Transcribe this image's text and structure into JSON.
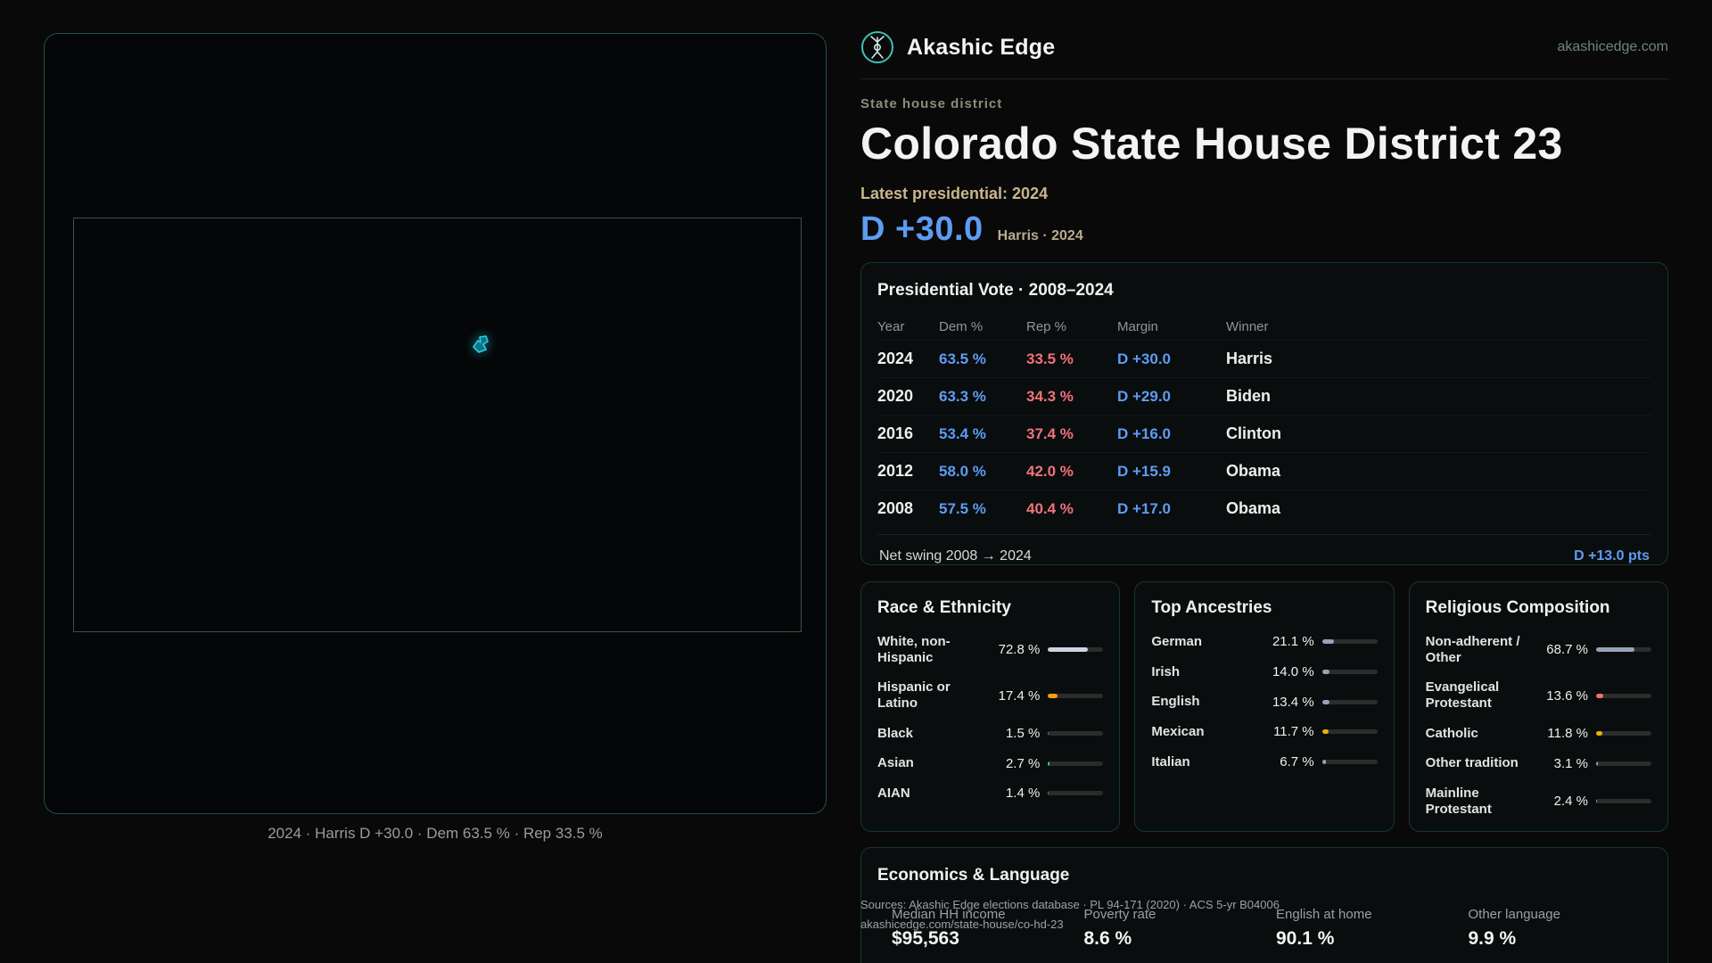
{
  "brand": {
    "name": "Akashic Edge",
    "domain": "akashicedge.com"
  },
  "header": {
    "kicker": "State house district",
    "title": "Colorado State House District 23",
    "latest_label": "Latest presidential: 2024",
    "margin_value": "D +30.0",
    "margin_note": "Harris · 2024"
  },
  "map": {
    "caption": "2024 · Harris D +30.0 · Dem 63.5 % · Rep 33.5 %"
  },
  "colors": {
    "dem_blue": "#5e9cf3",
    "rep_red": "#f0727c",
    "accent_teal": "#3fc0b6",
    "tan": "#c8b58c",
    "district_cyan": "#22d3ee"
  },
  "presidential": {
    "title": "Presidential Vote · 2008–2024",
    "columns": [
      "Year",
      "Dem %",
      "Rep %",
      "Margin",
      "Winner"
    ],
    "rows": [
      {
        "year": "2024",
        "dem": "63.5 %",
        "rep": "33.5 %",
        "margin": "D +30.0",
        "winner": "Harris"
      },
      {
        "year": "2020",
        "dem": "63.3 %",
        "rep": "34.3 %",
        "margin": "D +29.0",
        "winner": "Biden"
      },
      {
        "year": "2016",
        "dem": "53.4 %",
        "rep": "37.4 %",
        "margin": "D +16.0",
        "winner": "Clinton"
      },
      {
        "year": "2012",
        "dem": "58.0 %",
        "rep": "42.0 %",
        "margin": "D +15.9",
        "winner": "Obama"
      },
      {
        "year": "2008",
        "dem": "57.5 %",
        "rep": "40.4 %",
        "margin": "D +17.0",
        "winner": "Obama"
      }
    ],
    "footer_label": "Net swing 2008 → 2024",
    "footer_value": "D +13.0 pts"
  },
  "demographics": [
    {
      "title": "Race & Ethnicity",
      "rows": [
        {
          "label": "White, non-Hispanic",
          "value": "72.8 %",
          "pct": 72.8,
          "color": "#cbd5e1"
        },
        {
          "label": "Hispanic or Latino",
          "value": "17.4 %",
          "pct": 17.4,
          "color": "#f59e0b"
        },
        {
          "label": "Black",
          "value": "1.5 %",
          "pct": 1.5,
          "color": "#8b5cf6"
        },
        {
          "label": "Asian",
          "value": "2.7 %",
          "pct": 2.7,
          "color": "#34d399"
        },
        {
          "label": "AIAN",
          "value": "1.4 %",
          "pct": 1.4,
          "color": "#ef4444"
        }
      ]
    },
    {
      "title": "Top Ancestries",
      "rows": [
        {
          "label": "German",
          "value": "21.1 %",
          "pct": 21.1,
          "color": "#94a3b8"
        },
        {
          "label": "Irish",
          "value": "14.0 %",
          "pct": 14.0,
          "color": "#94a3b8"
        },
        {
          "label": "English",
          "value": "13.4 %",
          "pct": 13.4,
          "color": "#94a3b8"
        },
        {
          "label": "Mexican",
          "value": "11.7 %",
          "pct": 11.7,
          "color": "#eab308"
        },
        {
          "label": "Italian",
          "value": "6.7 %",
          "pct": 6.7,
          "color": "#94a3b8"
        }
      ]
    },
    {
      "title": "Religious Composition",
      "rows": [
        {
          "label": "Non-adherent / Other",
          "value": "68.7 %",
          "pct": 68.7,
          "color": "#94a3b8"
        },
        {
          "label": "Evangelical Protestant",
          "value": "13.6 %",
          "pct": 13.6,
          "color": "#f87171"
        },
        {
          "label": "Catholic",
          "value": "11.8 %",
          "pct": 11.8,
          "color": "#eab308"
        },
        {
          "label": "Other tradition",
          "value": "3.1 %",
          "pct": 3.1,
          "color": "#94a3b8"
        },
        {
          "label": "Mainline Protestant",
          "value": "2.4 %",
          "pct": 2.4,
          "color": "#60a5fa"
        }
      ]
    }
  ],
  "economics": {
    "title": "Economics & Language",
    "stats": [
      {
        "label": "Median HH income",
        "value": "$95,563"
      },
      {
        "label": "Poverty rate",
        "value": "8.6 %"
      },
      {
        "label": "English at home",
        "value": "90.1 %"
      },
      {
        "label": "Other language",
        "value": "9.9 %"
      }
    ]
  },
  "sources": {
    "line1": "Sources: Akashic Edge elections database · PL 94-171 (2020) · ACS 5-yr B04006",
    "line2": "akashicedge.com/state-house/co-hd-23"
  }
}
